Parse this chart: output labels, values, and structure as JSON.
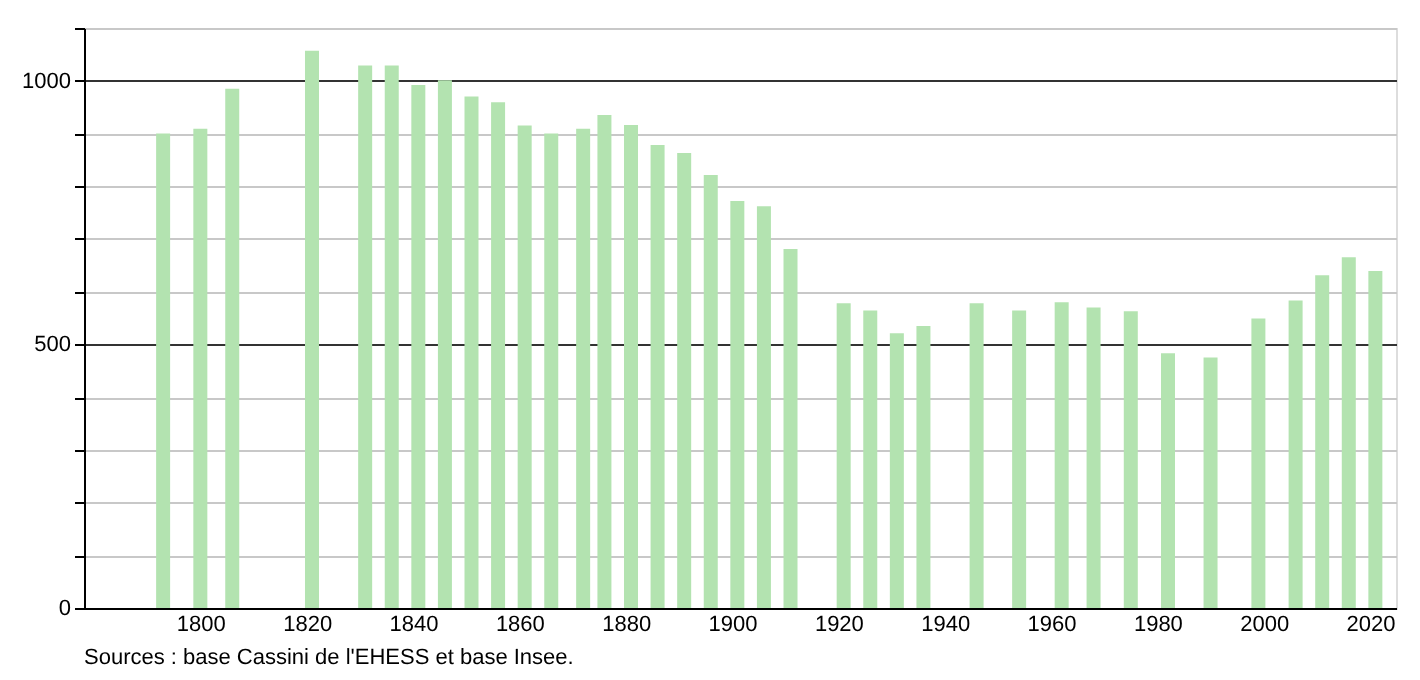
{
  "chart_data": {
    "type": "bar",
    "x": [
      1793,
      1800,
      1806,
      1821,
      1831,
      1836,
      1841,
      1846,
      1851,
      1856,
      1861,
      1866,
      1872,
      1876,
      1881,
      1886,
      1891,
      1896,
      1901,
      1906,
      1911,
      1921,
      1926,
      1931,
      1936,
      1946,
      1954,
      1962,
      1968,
      1975,
      1982,
      1990,
      1999,
      2006,
      2011,
      2016,
      2021
    ],
    "values": [
      900,
      909,
      985,
      1057,
      1029,
      1029,
      992,
      1001,
      970,
      959,
      915,
      900,
      909,
      935,
      916,
      878,
      863,
      821,
      772,
      762,
      681,
      578,
      564,
      521,
      535,
      578,
      564,
      580,
      570,
      563,
      483,
      475,
      549,
      583,
      631,
      665,
      639
    ],
    "color": "#b3e3b0",
    "xlim": [
      1780,
      2023
    ],
    "xticks": [
      1800,
      1820,
      1840,
      1860,
      1880,
      1900,
      1920,
      1940,
      1960,
      1980,
      2000,
      2020
    ],
    "ylim": [
      0,
      1100
    ],
    "yticks": [
      0,
      {
        "value": 100,
        "label": null
      },
      {
        "value": 200,
        "label": null
      },
      {
        "value": 300,
        "label": null
      },
      {
        "value": 400,
        "label": null
      },
      500,
      {
        "value": 600,
        "label": null
      },
      {
        "value": 700,
        "label": null
      },
      {
        "value": 800,
        "label": null
      },
      {
        "value": 900,
        "label": null
      },
      1000,
      {
        "value": 1100,
        "label": null
      }
    ],
    "grid": "y",
    "annotations": [
      "Sources : base Cassini de l'EHESS et base Insee."
    ]
  }
}
